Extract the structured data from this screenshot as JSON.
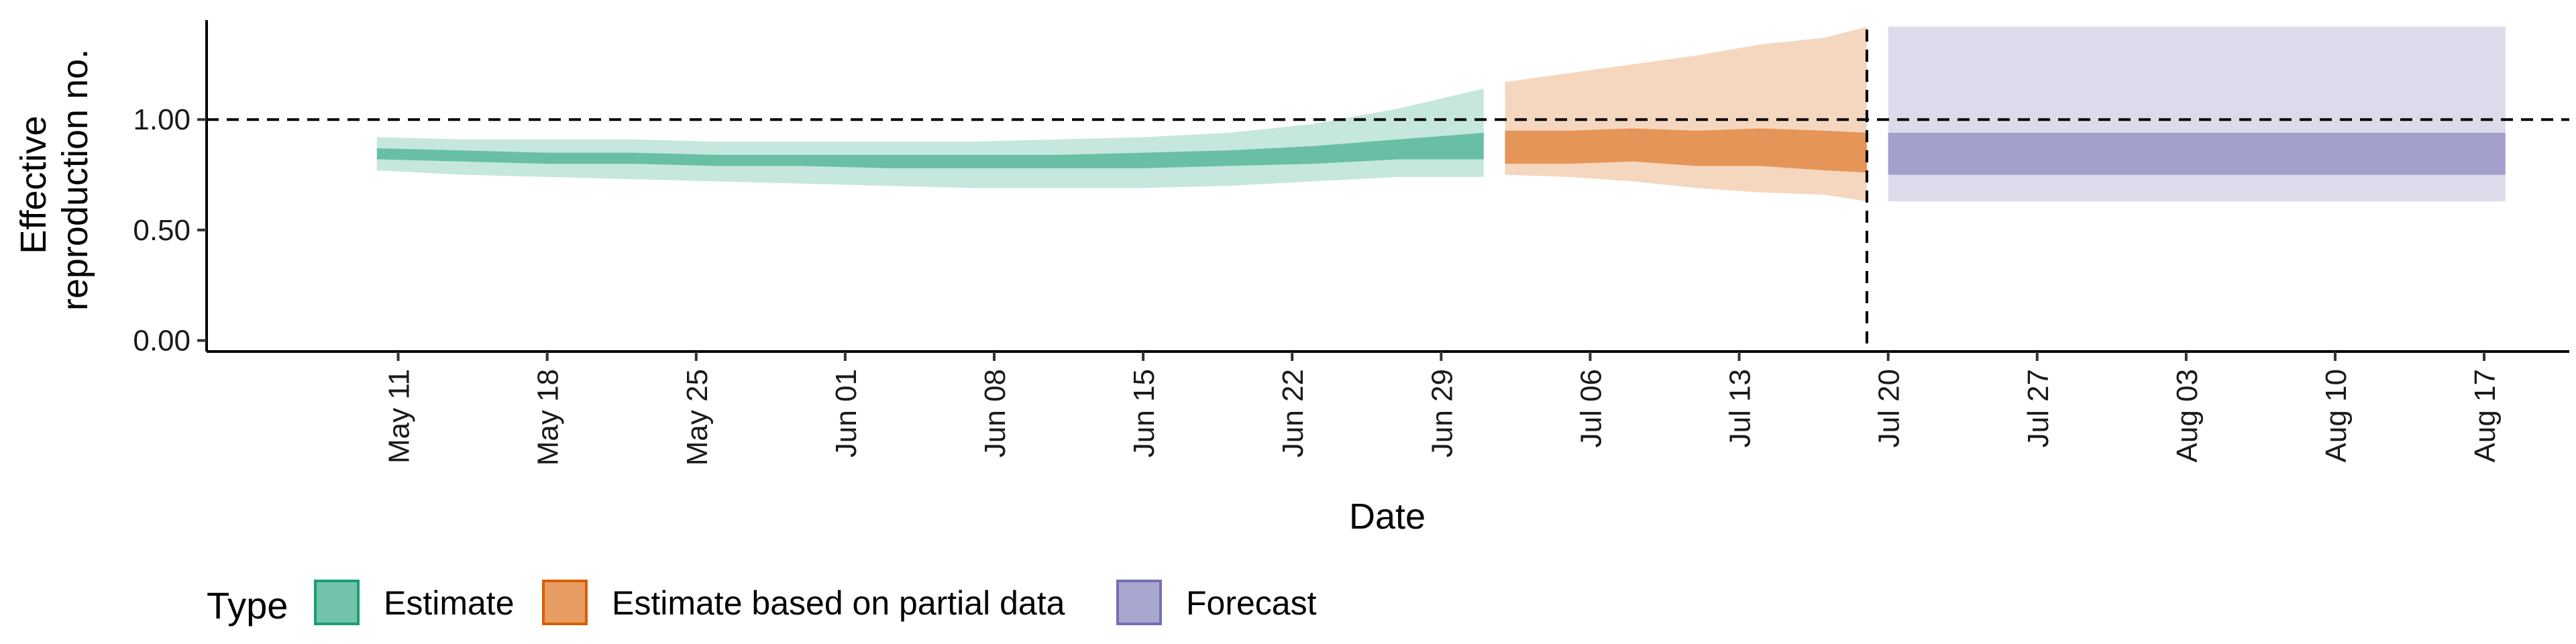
{
  "chart_data": {
    "type": "area",
    "xlabel": "Date",
    "ylabel_lines": [
      "Effective",
      "reproduction no."
    ],
    "y_ticks": [
      "0.00",
      "0.50",
      "1.00"
    ],
    "ylim": [
      -0.05,
      1.45
    ],
    "xlim": [
      "2020-05-02",
      "2020-08-21"
    ],
    "x_ticks": [
      {
        "date": "2020-05-11",
        "label": "May 11"
      },
      {
        "date": "2020-05-18",
        "label": "May 18"
      },
      {
        "date": "2020-05-25",
        "label": "May 25"
      },
      {
        "date": "2020-06-01",
        "label": "Jun 01"
      },
      {
        "date": "2020-06-08",
        "label": "Jun 08"
      },
      {
        "date": "2020-06-15",
        "label": "Jun 15"
      },
      {
        "date": "2020-06-22",
        "label": "Jun 22"
      },
      {
        "date": "2020-06-29",
        "label": "Jun 29"
      },
      {
        "date": "2020-07-06",
        "label": "Jul 06"
      },
      {
        "date": "2020-07-13",
        "label": "Jul 13"
      },
      {
        "date": "2020-07-20",
        "label": "Jul 20"
      },
      {
        "date": "2020-07-27",
        "label": "Jul 27"
      },
      {
        "date": "2020-08-03",
        "label": "Aug 03"
      },
      {
        "date": "2020-08-10",
        "label": "Aug 10"
      },
      {
        "date": "2020-08-17",
        "label": "Aug 17"
      }
    ],
    "reference_line_y": 1.0,
    "vertical_line_date": "2020-07-19",
    "grid": false,
    "legend_position": "bottom-left",
    "legend_title": "Type",
    "series": [
      {
        "name": "Estimate",
        "color": "#1b9e77",
        "points": [
          {
            "x": "2020-05-10",
            "lo90": 0.77,
            "lo50": 0.82,
            "hi50": 0.87,
            "hi90": 0.92
          },
          {
            "x": "2020-05-14",
            "lo90": 0.75,
            "lo50": 0.81,
            "hi50": 0.86,
            "hi90": 0.91
          },
          {
            "x": "2020-05-18",
            "lo90": 0.74,
            "lo50": 0.8,
            "hi50": 0.85,
            "hi90": 0.91
          },
          {
            "x": "2020-05-22",
            "lo90": 0.73,
            "lo50": 0.8,
            "hi50": 0.85,
            "hi90": 0.91
          },
          {
            "x": "2020-05-26",
            "lo90": 0.72,
            "lo50": 0.79,
            "hi50": 0.84,
            "hi90": 0.9
          },
          {
            "x": "2020-05-30",
            "lo90": 0.71,
            "lo50": 0.79,
            "hi50": 0.84,
            "hi90": 0.9
          },
          {
            "x": "2020-06-03",
            "lo90": 0.7,
            "lo50": 0.78,
            "hi50": 0.84,
            "hi90": 0.9
          },
          {
            "x": "2020-06-07",
            "lo90": 0.69,
            "lo50": 0.78,
            "hi50": 0.84,
            "hi90": 0.9
          },
          {
            "x": "2020-06-11",
            "lo90": 0.69,
            "lo50": 0.78,
            "hi50": 0.84,
            "hi90": 0.91
          },
          {
            "x": "2020-06-15",
            "lo90": 0.69,
            "lo50": 0.78,
            "hi50": 0.85,
            "hi90": 0.92
          },
          {
            "x": "2020-06-19",
            "lo90": 0.7,
            "lo50": 0.79,
            "hi50": 0.86,
            "hi90": 0.94
          },
          {
            "x": "2020-06-23",
            "lo90": 0.72,
            "lo50": 0.8,
            "hi50": 0.88,
            "hi90": 0.98
          },
          {
            "x": "2020-06-27",
            "lo90": 0.74,
            "lo50": 0.82,
            "hi50": 0.91,
            "hi90": 1.05
          },
          {
            "x": "2020-07-01",
            "lo90": 0.74,
            "lo50": 0.82,
            "hi50": 0.94,
            "hi90": 1.14
          }
        ]
      },
      {
        "name": "Estimate based on partial data",
        "color": "#d95f02",
        "points": [
          {
            "x": "2020-07-02",
            "lo90": 0.75,
            "lo50": 0.8,
            "hi50": 0.95,
            "hi90": 1.17
          },
          {
            "x": "2020-07-05",
            "lo90": 0.74,
            "lo50": 0.8,
            "hi50": 0.95,
            "hi90": 1.21
          },
          {
            "x": "2020-07-08",
            "lo90": 0.72,
            "lo50": 0.81,
            "hi50": 0.96,
            "hi90": 1.25
          },
          {
            "x": "2020-07-11",
            "lo90": 0.69,
            "lo50": 0.79,
            "hi50": 0.95,
            "hi90": 1.29
          },
          {
            "x": "2020-07-14",
            "lo90": 0.67,
            "lo50": 0.79,
            "hi50": 0.96,
            "hi90": 1.34
          },
          {
            "x": "2020-07-17",
            "lo90": 0.66,
            "lo50": 0.77,
            "hi50": 0.95,
            "hi90": 1.37
          },
          {
            "x": "2020-07-19",
            "lo90": 0.63,
            "lo50": 0.76,
            "hi50": 0.94,
            "hi90": 1.42
          }
        ]
      },
      {
        "name": "Forecast",
        "color": "#7570b3",
        "points": [
          {
            "x": "2020-07-20",
            "lo90": 0.63,
            "lo50": 0.75,
            "hi50": 0.94,
            "hi90": 1.42
          },
          {
            "x": "2020-08-18",
            "lo90": 0.63,
            "lo50": 0.75,
            "hi50": 0.94,
            "hi90": 1.42
          }
        ]
      }
    ]
  }
}
